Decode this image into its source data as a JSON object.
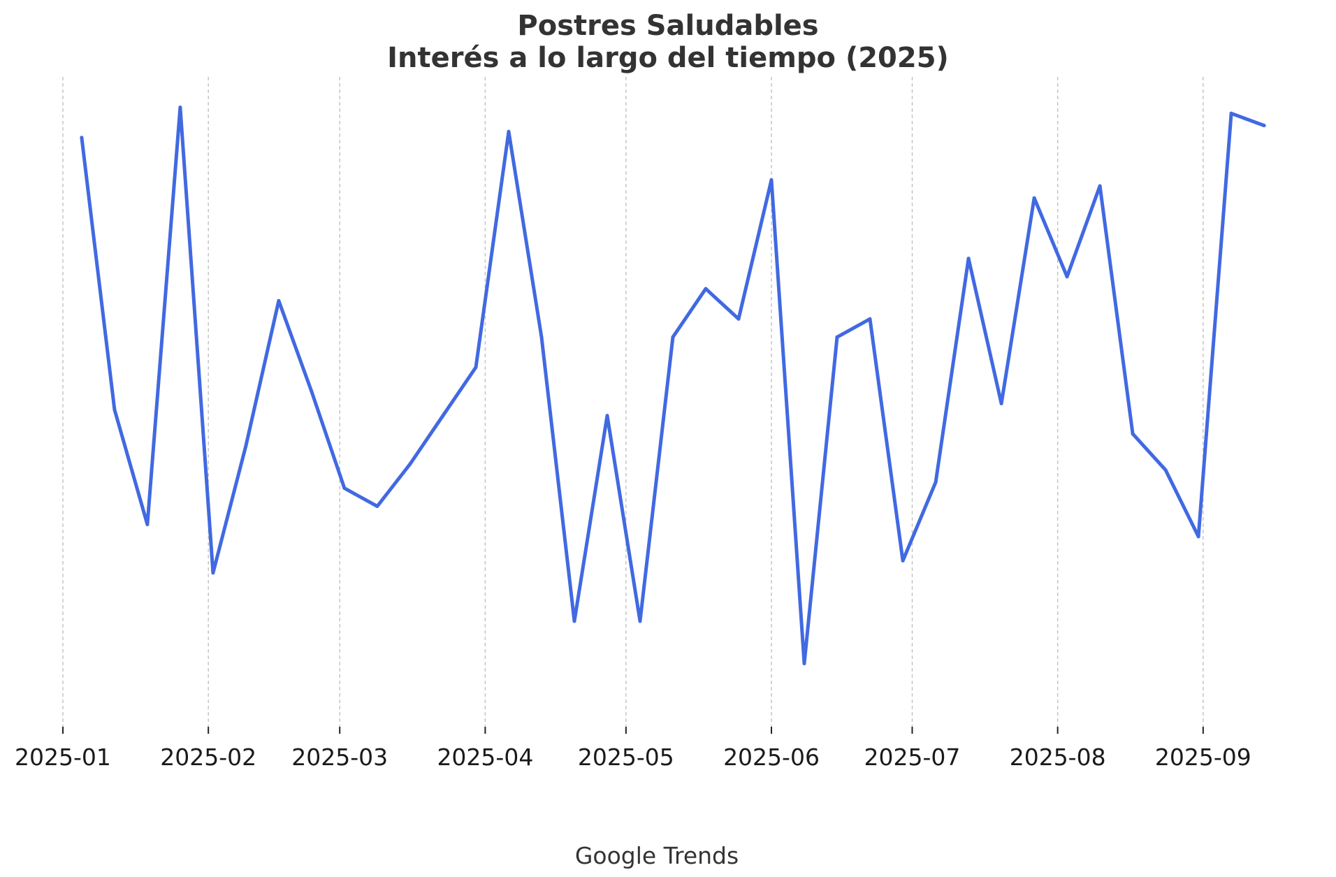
{
  "colors": {
    "series": "#4169e1",
    "text": "#333333",
    "grid": "#bdbdbd"
  },
  "chart_data": {
    "type": "line",
    "title": [
      "Postres Saludables",
      "Interés a lo largo del tiempo (2025)"
    ],
    "source": "Google Trends",
    "xlabel": "",
    "ylabel": "",
    "x_ticks": [
      "2025-01",
      "2025-02",
      "2025-03",
      "2025-04",
      "2025-05",
      "2025-06",
      "2025-07",
      "2025-08",
      "2025-09"
    ],
    "xlim": [
      "2025-01-01",
      "2025-09-18"
    ],
    "ylim": [
      0,
      100
    ],
    "y_axis_visible": false,
    "grid": "vertical dashed",
    "legend": "none",
    "series": [
      {
        "color": "#4169e1",
        "x": [
          "2025-01-05",
          "2025-01-12",
          "2025-01-19",
          "2025-01-26",
          "2025-02-02",
          "2025-02-09",
          "2025-02-16",
          "2025-02-23",
          "2025-03-02",
          "2025-03-09",
          "2025-03-16",
          "2025-03-23",
          "2025-03-30",
          "2025-04-06",
          "2025-04-13",
          "2025-04-20",
          "2025-04-27",
          "2025-05-04",
          "2025-05-11",
          "2025-05-18",
          "2025-05-25",
          "2025-06-01",
          "2025-06-08",
          "2025-06-15",
          "2025-06-22",
          "2025-06-29",
          "2025-07-06",
          "2025-07-13",
          "2025-07-20",
          "2025-07-27",
          "2025-08-03",
          "2025-08-10",
          "2025-08-17",
          "2025-08-24",
          "2025-08-31",
          "2025-09-07",
          "2025-09-14"
        ],
        "values": [
          94,
          49,
          30,
          99,
          22,
          43,
          67,
          52,
          36,
          33,
          40,
          48,
          56,
          95,
          61,
          14,
          48,
          14,
          61,
          69,
          64,
          87,
          7,
          61,
          64,
          24,
          37,
          74,
          50,
          84,
          71,
          86,
          45,
          39,
          28,
          98,
          96
        ]
      }
    ]
  }
}
